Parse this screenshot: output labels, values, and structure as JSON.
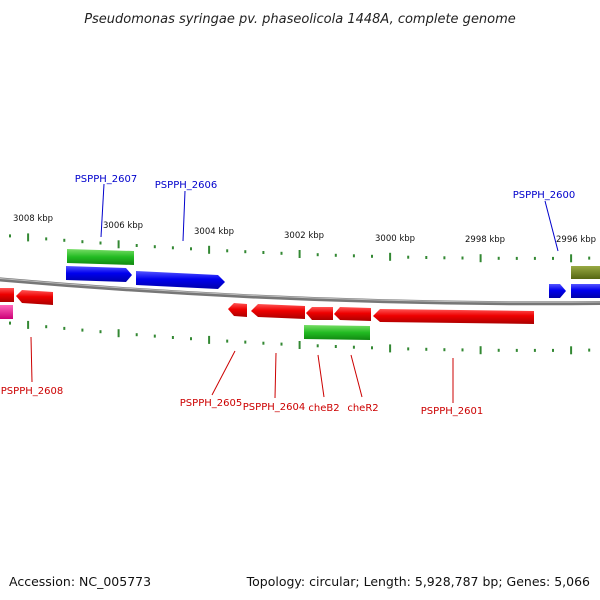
{
  "title": "Pseudomonas syringae pv. phaseolicola 1448A, complete genome",
  "footer": {
    "accession": "Accession: NC_005773",
    "summary": "Topology: circular; Length: 5,928,787 bp; Genes: 5,066"
  },
  "colors": {
    "plus_strand": "#0000ee",
    "minus_strand": "#ee0000",
    "rna": "#22bb22",
    "pink": "#ee1188",
    "olive": "#668822",
    "backbone": "#808080",
    "ticks": "#338833"
  },
  "scale_labels": [
    "3008 kbp",
    "3006 kbp",
    "3004 kbp",
    "3002 kbp",
    "3000 kbp",
    "2998 kbp",
    "2996 kbp"
  ],
  "gene_labels": [
    {
      "text": "PSPPH_2607",
      "strand": "plus"
    },
    {
      "text": "PSPPH_2606",
      "strand": "plus"
    },
    {
      "text": "PSPPH_2600",
      "strand": "plus"
    },
    {
      "text": "PSPPH_2608",
      "strand": "minus"
    },
    {
      "text": "PSPPH_2605",
      "strand": "minus"
    },
    {
      "text": "PSPPH_2604",
      "strand": "minus"
    },
    {
      "text": "cheB2",
      "strand": "minus"
    },
    {
      "text": "cheR2",
      "strand": "minus"
    },
    {
      "text": "PSPPH_2601",
      "strand": "minus"
    }
  ]
}
